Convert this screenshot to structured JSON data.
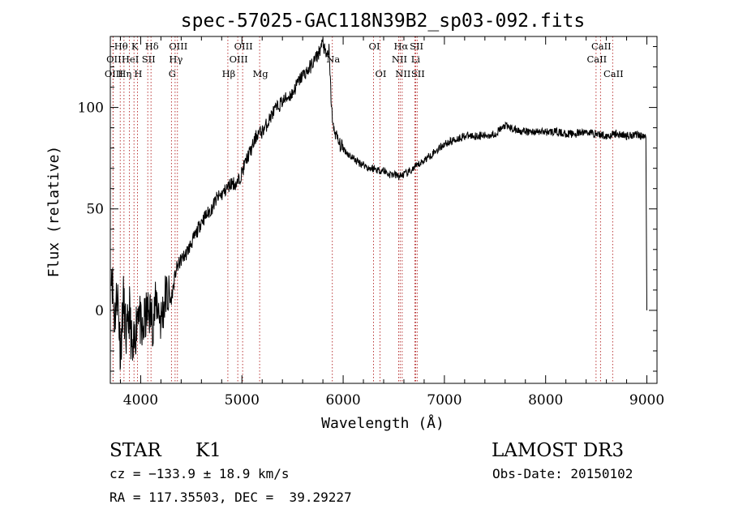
{
  "chart_data": {
    "type": "line",
    "title": "spec-57025-GAC118N39B2_sp03-092.fits",
    "xlabel": "Wavelength (Å)",
    "ylabel": "Flux (relative)",
    "xlim": [
      3700,
      9100
    ],
    "ylim": [
      -36,
      135
    ],
    "xticks": [
      4000,
      5000,
      6000,
      7000,
      8000,
      9000
    ],
    "xtick_labels": [
      "4000",
      "5000",
      "6000",
      "7000",
      "8000",
      "9000"
    ],
    "yticks": [
      0,
      50,
      100
    ],
    "ytick_labels": [
      "0",
      "50",
      "100"
    ],
    "series": [
      {
        "name": "spectrum",
        "x": [
          3710,
          3740,
          3770,
          3800,
          3830,
          3860,
          3890,
          3920,
          3950,
          3980,
          4010,
          4040,
          4080,
          4120,
          4160,
          4200,
          4250,
          4300,
          4350,
          4400,
          4450,
          4500,
          4550,
          4600,
          4650,
          4700,
          4750,
          4800,
          4850,
          4900,
          4950,
          5000,
          5050,
          5100,
          5150,
          5200,
          5250,
          5300,
          5350,
          5400,
          5450,
          5500,
          5550,
          5600,
          5650,
          5700,
          5750,
          5800,
          5830,
          5860,
          5880,
          5900,
          5920,
          5960,
          6000,
          6050,
          6100,
          6150,
          6200,
          6250,
          6300,
          6350,
          6400,
          6450,
          6500,
          6550,
          6600,
          6650,
          6700,
          6750,
          6800,
          6850,
          6900,
          6950,
          7000,
          7100,
          7200,
          7300,
          7400,
          7500,
          7600,
          7700,
          7800,
          7900,
          8000,
          8100,
          8200,
          8300,
          8400,
          8500,
          8600,
          8700,
          8800,
          8900,
          8950,
          8990,
          9000
        ],
        "y": [
          25,
          -5,
          10,
          -20,
          5,
          -15,
          0,
          -25,
          -10,
          5,
          -15,
          -5,
          0,
          -5,
          5,
          -5,
          8,
          5,
          20,
          25,
          28,
          33,
          38,
          44,
          47,
          50,
          55,
          57,
          60,
          63,
          62,
          68,
          75,
          80,
          87,
          88,
          92,
          97,
          100,
          103,
          105,
          107,
          112,
          116,
          118,
          122,
          126,
          132,
          125,
          128,
          105,
          90,
          88,
          82,
          80,
          77,
          75,
          73,
          72,
          70,
          70,
          69,
          69,
          67,
          67,
          66,
          67,
          68,
          70,
          72,
          74,
          76,
          78,
          80,
          82,
          84,
          86,
          86,
          86,
          87,
          91,
          89,
          88,
          88,
          88,
          88,
          87,
          87,
          88,
          87,
          86,
          87,
          86,
          87,
          86,
          85,
          0
        ]
      }
    ],
    "spectral_lines": [
      {
        "label": "Hθ",
        "x": 3798,
        "row": 1
      },
      {
        "label": "OII",
        "x": 3727,
        "row": 2
      },
      {
        "label": "OIII",
        "x": 3727,
        "row": 3
      },
      {
        "label": "K",
        "x": 3934,
        "row": 1
      },
      {
        "label": "HeI",
        "x": 3889,
        "row": 2
      },
      {
        "label": "Hη",
        "x": 3835,
        "row": 3
      },
      {
        "label": "H",
        "x": 3968,
        "row": 3
      },
      {
        "label": "Hδ",
        "x": 4102,
        "row": 1
      },
      {
        "label": "SII",
        "x": 4070,
        "row": 2
      },
      {
        "label": "OIII",
        "x": 4363,
        "row": 1
      },
      {
        "label": "Hγ",
        "x": 4340,
        "row": 2
      },
      {
        "label": "G",
        "x": 4304,
        "row": 3
      },
      {
        "label": "Hβ",
        "x": 4861,
        "row": 3
      },
      {
        "label": "OIII",
        "x": 5007,
        "row": 1
      },
      {
        "label": "OIII",
        "x": 4959,
        "row": 2
      },
      {
        "label": "Mg",
        "x": 5175,
        "row": 3
      },
      {
        "label": "Na",
        "x": 5893,
        "row": 2
      },
      {
        "label": "OI",
        "x": 6300,
        "row": 1
      },
      {
        "label": "OI",
        "x": 6364,
        "row": 3
      },
      {
        "label": "Hα",
        "x": 6563,
        "row": 1
      },
      {
        "label": "SII",
        "x": 6717,
        "row": 1
      },
      {
        "label": "NII",
        "x": 6548,
        "row": 2
      },
      {
        "label": "Li",
        "x": 6708,
        "row": 2
      },
      {
        "label": "NII",
        "x": 6583,
        "row": 3
      },
      {
        "label": "SII",
        "x": 6731,
        "row": 3
      },
      {
        "label": "CaII",
        "x": 8542,
        "row": 1
      },
      {
        "label": "CaII",
        "x": 8498,
        "row": 2
      },
      {
        "label": "CaII",
        "x": 8662,
        "row": 3
      }
    ]
  },
  "info": {
    "object_class": "STAR",
    "subclass": "K1",
    "survey": "LAMOST DR3",
    "cz": "cz = −133.9 ± 18.9 km/s",
    "obs_date": "Obs-Date: 20150102",
    "coords": "RA = 117.35503, DEC =  39.29227"
  },
  "colors": {
    "line": "#000000",
    "marker": "#b22222",
    "text": "#000000"
  }
}
